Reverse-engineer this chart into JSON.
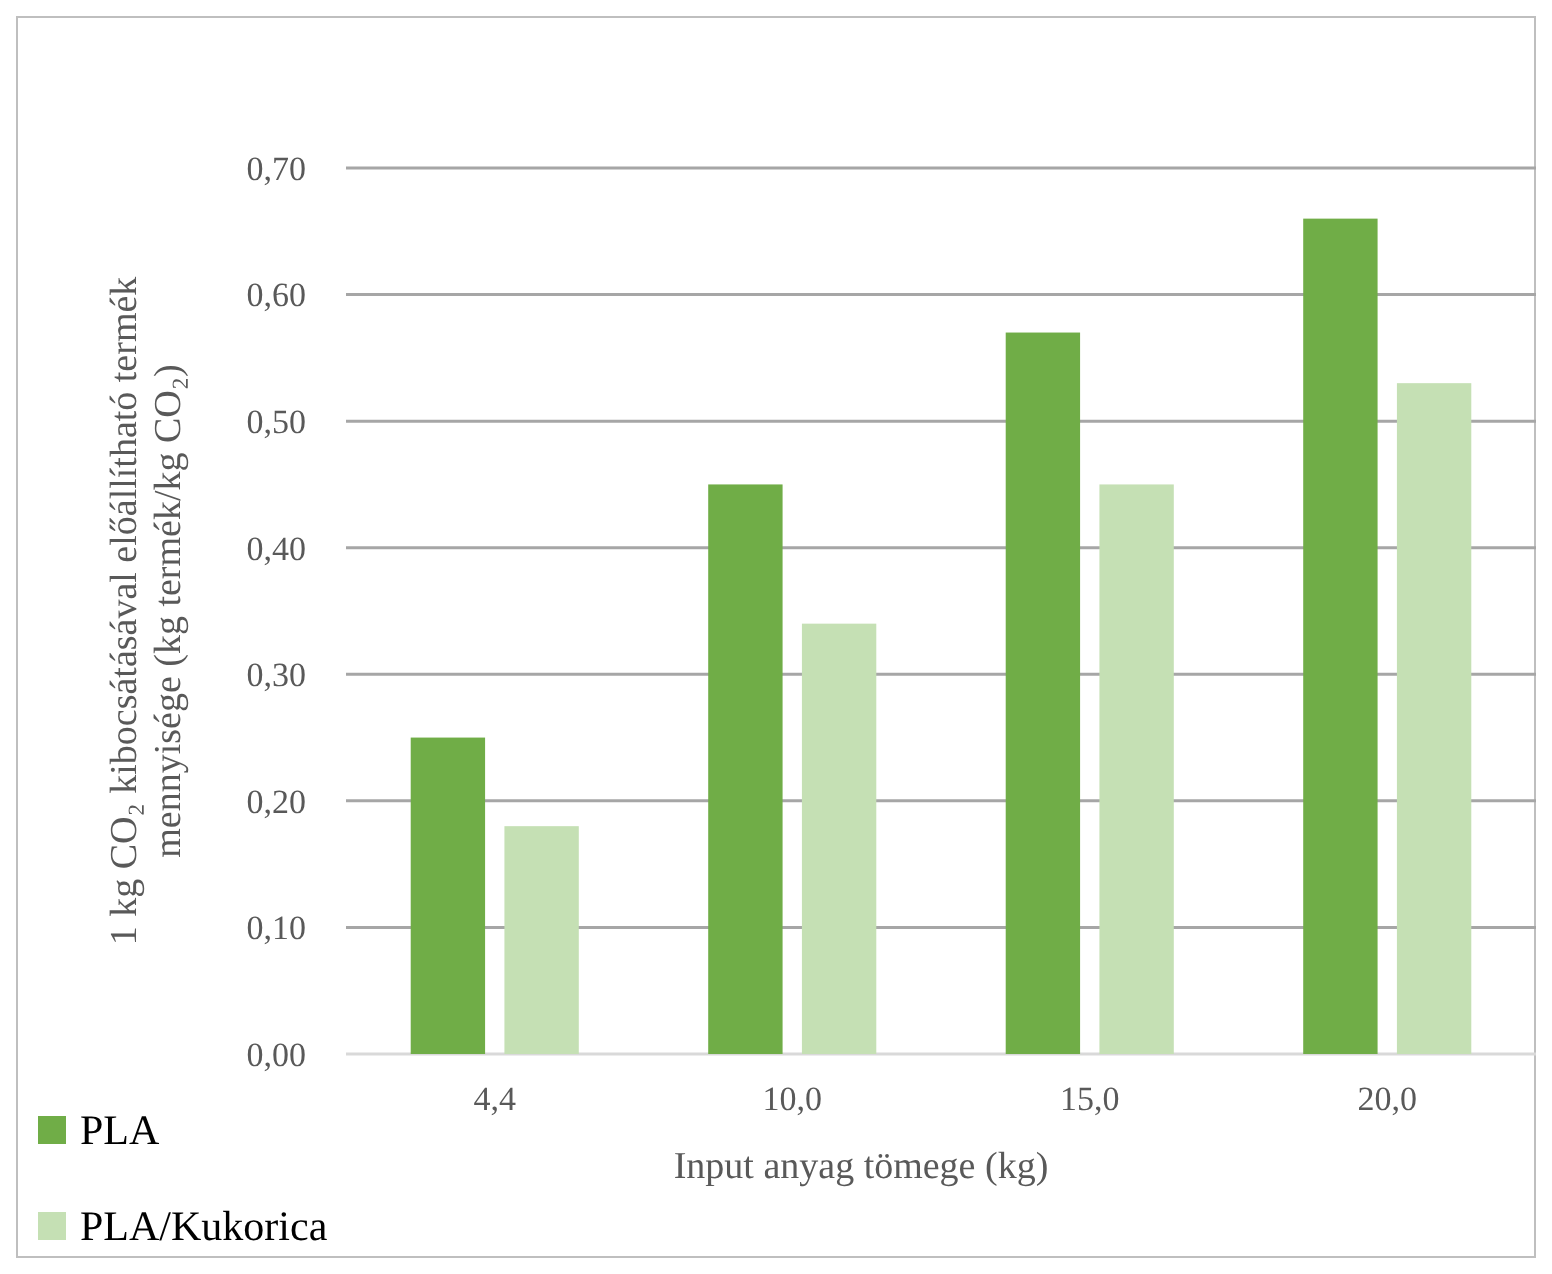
{
  "chart_data": {
    "type": "bar",
    "xlabel": "Input anyag tömege (kg)",
    "ylabel": "1 kg CO₂ kibocsátásával előállítható termék\nmennyisége  (kg termék/kg CO₂)",
    "categories": [
      "4,4",
      "10,0",
      "15,0",
      "20,0"
    ],
    "series": [
      {
        "name": "PLA",
        "color": "#70ad47",
        "values": [
          0.25,
          0.45,
          0.57,
          0.66
        ]
      },
      {
        "name": "PLA/Kukorica",
        "color": "#c5e0b4",
        "values": [
          0.18,
          0.34,
          0.45,
          0.53
        ]
      }
    ],
    "ylim": [
      0,
      0.7
    ],
    "yticks": [
      {
        "value": 0,
        "label": "0,00"
      },
      {
        "value": 0.1,
        "label": "0,10"
      },
      {
        "value": 0.2,
        "label": "0,20"
      },
      {
        "value": 0.3,
        "label": "0,30"
      },
      {
        "value": 0.4,
        "label": "0,40"
      },
      {
        "value": 0.5,
        "label": "0,50"
      },
      {
        "value": 0.6,
        "label": "0,60"
      },
      {
        "value": 0.7,
        "label": "0,70"
      }
    ],
    "grid": "y",
    "legend": "bottom left"
  }
}
